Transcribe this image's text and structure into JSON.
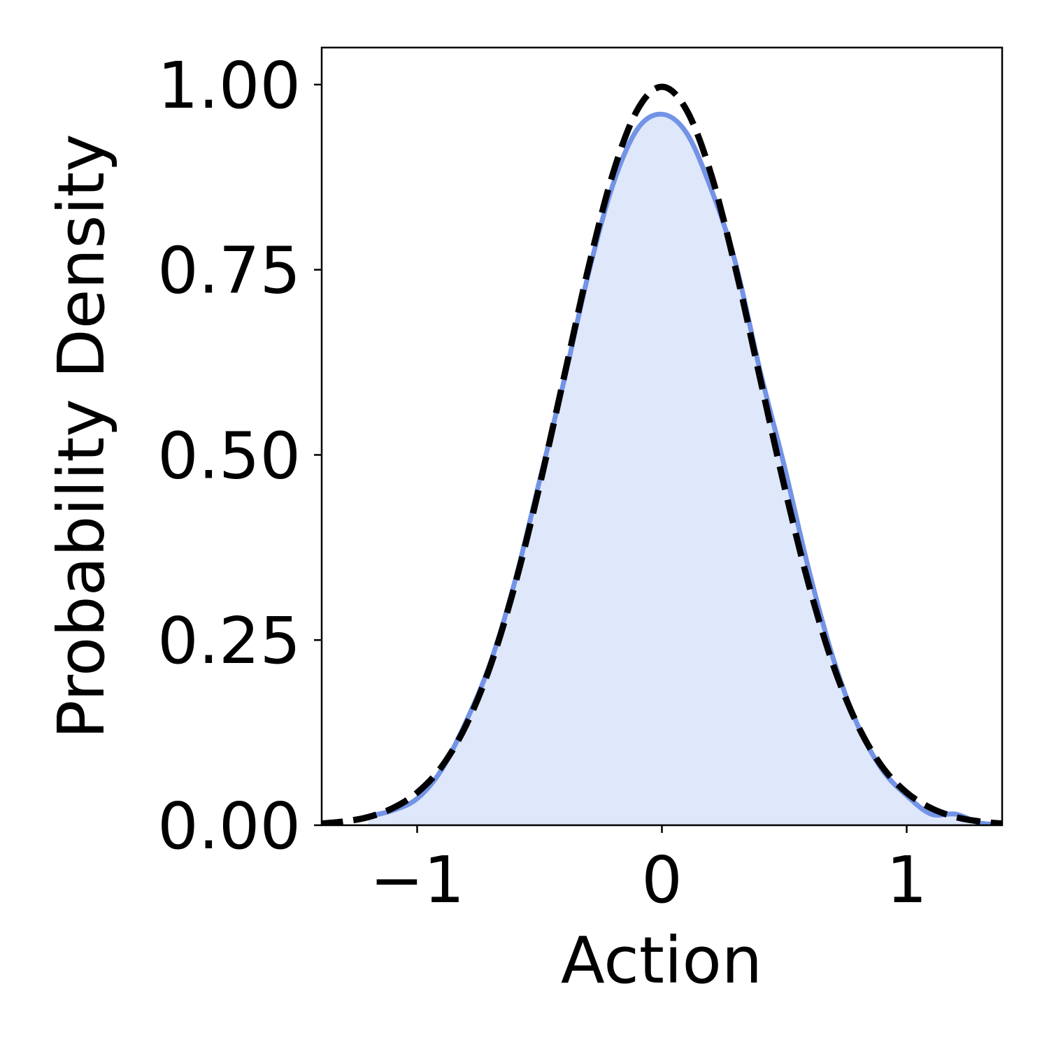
{
  "chart_data": {
    "type": "line",
    "x_label": "Action",
    "y_label": "Probability Density",
    "x": [
      -1.4,
      -1.3,
      -1.2,
      -1.1,
      -1.0,
      -0.9,
      -0.8,
      -0.7,
      -0.6,
      -0.5,
      -0.4,
      -0.3,
      -0.2,
      -0.1,
      0,
      0.1,
      0.2,
      0.3,
      0.4,
      0.5,
      0.6,
      0.7,
      0.8,
      0.9,
      1.0,
      1.1,
      1.2,
      1.3,
      1.4
    ],
    "series": [
      {
        "color": "#7393e6",
        "fill": true,
        "fill_color": "#dfe7fa",
        "dashed": false,
        "values": [
          null,
          null,
          0.012,
          0.02,
          0.036,
          0.075,
          0.14,
          0.22,
          0.33,
          0.465,
          0.6,
          0.745,
          0.865,
          0.94,
          0.96,
          0.935,
          0.86,
          0.76,
          0.615,
          0.485,
          0.345,
          0.225,
          0.135,
          0.075,
          0.04,
          0.015,
          0.015,
          0.003,
          0.001
        ]
      },
      {
        "color": "#000000",
        "fill": false,
        "dashed": true,
        "values": [
          0.002,
          0.005,
          0.011,
          0.023,
          0.044,
          0.079,
          0.135,
          0.216,
          0.325,
          0.458,
          0.605,
          0.753,
          0.88,
          0.966,
          0.997,
          0.966,
          0.88,
          0.753,
          0.605,
          0.458,
          0.325,
          0.216,
          0.135,
          0.079,
          0.044,
          0.023,
          0.011,
          0.005,
          0.002
        ]
      }
    ],
    "xlim": [
      -1.39,
      1.39
    ],
    "ylim": [
      0,
      1.05
    ],
    "xticks": [
      {
        "value": -1,
        "label": "−1"
      },
      0,
      1
    ],
    "yticks": [
      {
        "value": 0,
        "label": "0.00"
      },
      {
        "value": 0.25,
        "label": "0.25"
      },
      {
        "value": 0.5,
        "label": "0.50"
      },
      {
        "value": 0.75,
        "label": "0.75"
      },
      {
        "value": 1,
        "label": "1.00"
      }
    ],
    "grid": false
  }
}
